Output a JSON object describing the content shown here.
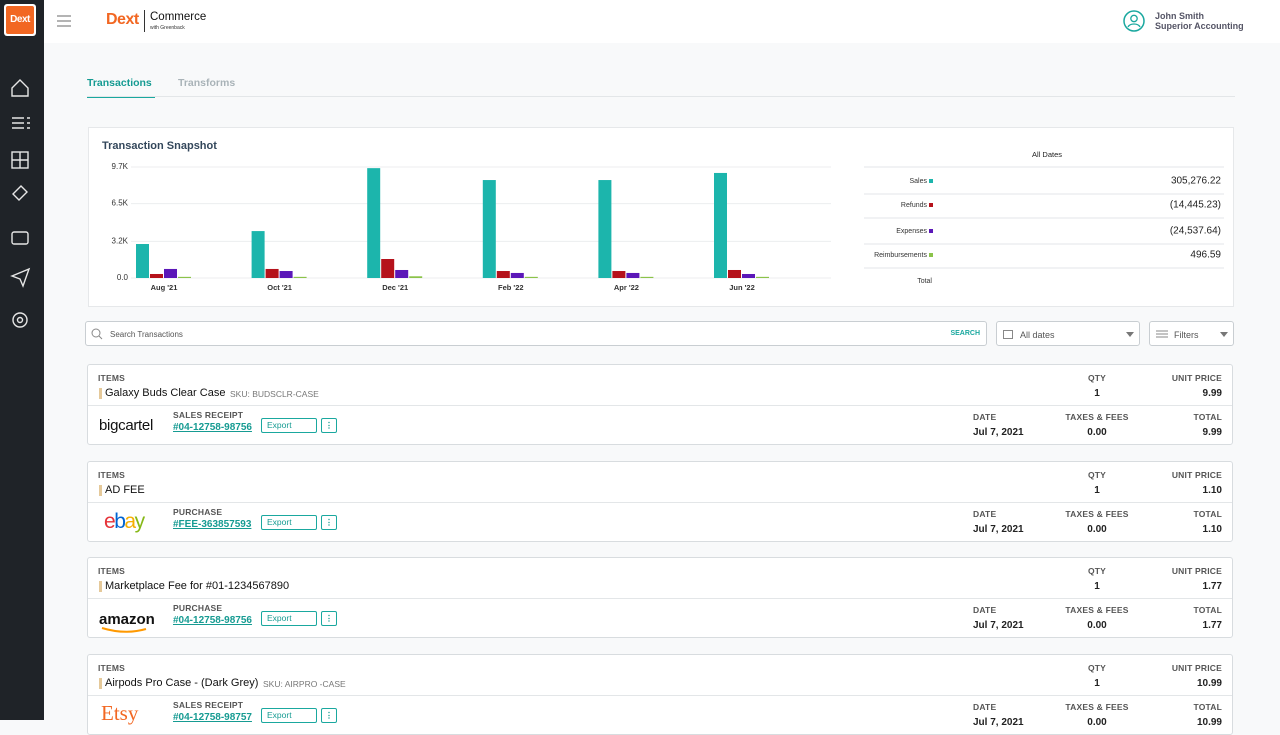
{
  "header": {
    "brand": "Dext",
    "product": "Commerce",
    "product_sub": "with Greenback",
    "user_name": "John Smith",
    "user_company": "Superior Accounting"
  },
  "tabs": [
    "Transactions",
    "Transforms"
  ],
  "chart_data": {
    "type": "bar",
    "title": "Transaction Snapshot",
    "categories": [
      "Aug '21",
      "Oct '21",
      "Dec '21",
      "Feb '22",
      "Apr '22",
      "Jun '22"
    ],
    "series": [
      {
        "name": "Sales",
        "color": "#1cb5ac",
        "values": [
          2970,
          4100,
          9600,
          8560,
          8560,
          9180
        ]
      },
      {
        "name": "Refunds",
        "color": "#b5121b",
        "values": [
          350,
          790,
          1660,
          610,
          610,
          700
        ]
      },
      {
        "name": "Expenses",
        "color": "#5b17b8",
        "values": [
          790,
          610,
          700,
          440,
          440,
          350
        ]
      },
      {
        "name": "Reimbursements",
        "color": "#8bc34a",
        "values": [
          100,
          100,
          150,
          100,
          100,
          100
        ]
      }
    ],
    "ylim": [
      0,
      9700
    ],
    "yticks": [
      {
        "value": 0,
        "label": "0.0"
      },
      {
        "value": 3200,
        "label": "3.2K"
      },
      {
        "value": 6500,
        "label": "6.5K"
      },
      {
        "value": 9700,
        "label": "9.7K"
      }
    ],
    "grid": true
  },
  "summary": {
    "heading": "All Dates",
    "values": [
      "305,276.22",
      "(14,445.23)",
      "(24,537.64)",
      "496.59"
    ],
    "total_label": "Total"
  },
  "search": {
    "placeholder": "Search Transactions",
    "button": "SEARCH",
    "date_filter": "All dates",
    "filters": "Filters"
  },
  "labels": {
    "items": "ITEMS",
    "qty": "QTY",
    "unit_price": "UNIT PRICE",
    "date": "DATE",
    "taxes": "TAXES & FEES",
    "total": "TOTAL",
    "export": "Export"
  },
  "transactions": [
    {
      "item": "Galaxy Buds Clear Case",
      "sku": "SKU: BUDSCLR-CASE",
      "qty": "1",
      "unit_price": "9.99",
      "source": "bigcartel",
      "kind": "SALES RECEIPT",
      "ref": "#04-12758-98756",
      "date": "Jul 7, 2021",
      "taxes": "0.00",
      "total": "9.99"
    },
    {
      "item": "AD FEE",
      "qty": "1",
      "unit_price": "1.10",
      "source": "ebay",
      "kind": "PURCHASE",
      "ref": "#FEE-363857593",
      "date": "Jul 7, 2021",
      "taxes": "0.00",
      "total": "1.10"
    },
    {
      "item": "Marketplace Fee for #01-1234567890",
      "qty": "1",
      "unit_price": "1.77",
      "source": "amazon",
      "kind": "PURCHASE",
      "ref": "#04-12758-98756",
      "date": "Jul 7, 2021",
      "taxes": "0.00",
      "total": "1.77"
    },
    {
      "item": "Airpods Pro Case - (Dark Grey)",
      "sku": "SKU: AIRPRO -CASE",
      "qty": "1",
      "unit_price": "10.99",
      "source": "Etsy",
      "kind": "SALES RECEIPT",
      "ref": "#04-12758-98757",
      "date": "Jul 7, 2021",
      "taxes": "0.00",
      "total": "10.99"
    }
  ]
}
